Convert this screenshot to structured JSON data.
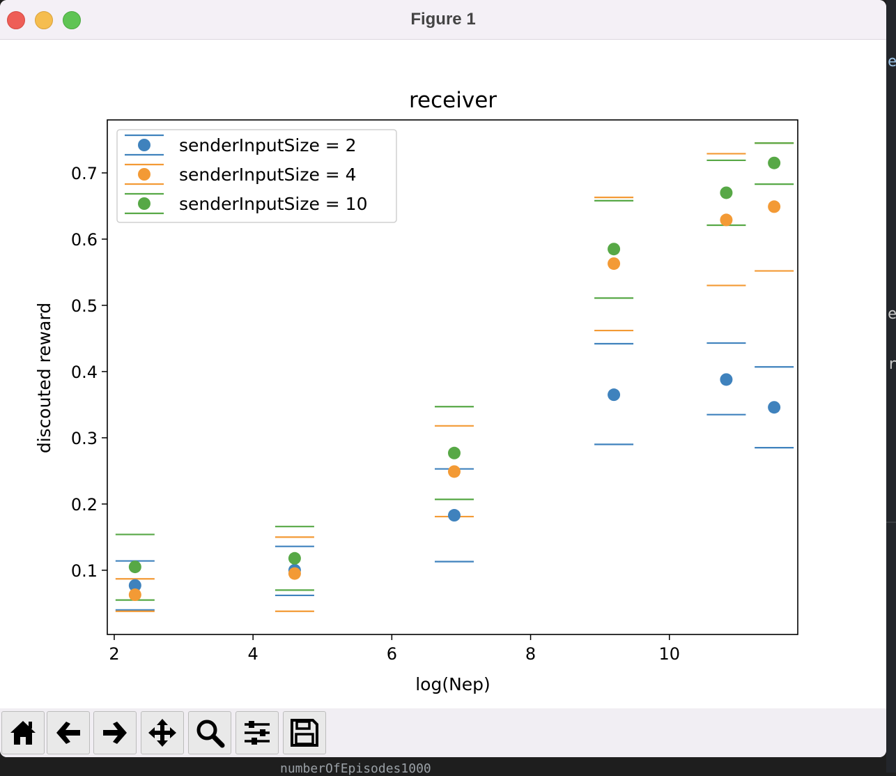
{
  "window": {
    "title": "Figure 1"
  },
  "toolbar": {
    "buttons": [
      {
        "name": "home-button",
        "icon": "home-icon"
      },
      {
        "name": "back-button",
        "icon": "arrow-left-icon"
      },
      {
        "name": "forward-button",
        "icon": "arrow-right-icon"
      },
      {
        "name": "pan-button",
        "icon": "move-icon"
      },
      {
        "name": "zoom-button",
        "icon": "magnifier-icon"
      },
      {
        "name": "configure-subplots-button",
        "icon": "sliders-icon"
      },
      {
        "name": "save-button",
        "icon": "floppy-disk-icon"
      }
    ]
  },
  "background": {
    "terminal_text": "numberOfEpisodes1000",
    "edge_letters": [
      "e",
      "e",
      "r"
    ]
  },
  "chart_data": {
    "type": "scatter",
    "title": "receiver",
    "xlabel": "log(Nep)",
    "ylabel": "discouted reward",
    "xlim": [
      1.9,
      11.85
    ],
    "ylim": [
      0.003,
      0.78
    ],
    "xticks": [
      2,
      4,
      6,
      8,
      10
    ],
    "yticks": [
      0.1,
      0.2,
      0.3,
      0.4,
      0.5,
      0.6,
      0.7
    ],
    "grid": false,
    "legend_position": "top-left",
    "x": [
      2.3,
      4.6,
      6.9,
      9.2,
      10.82,
      11.51
    ],
    "series": [
      {
        "name": "senderInputSize = 2",
        "color": "#3f82bd",
        "means": [
          0.077,
          0.1,
          0.183,
          0.365,
          0.388,
          0.346
        ],
        "band_high": [
          0.114,
          0.136,
          0.253,
          0.442,
          0.443,
          0.407
        ],
        "band_low": [
          0.04,
          0.062,
          0.113,
          0.29,
          0.335,
          0.285
        ]
      },
      {
        "name": "senderInputSize = 4",
        "color": "#f39a35",
        "means": [
          0.063,
          0.095,
          0.249,
          0.563,
          0.629,
          0.649
        ],
        "band_high": [
          0.087,
          0.15,
          0.318,
          0.663,
          0.729,
          0.552
        ],
        "band_low": [
          0.038,
          0.038,
          0.181,
          0.462,
          0.53,
          0.745
        ]
      },
      {
        "name": "senderInputSize = 10",
        "color": "#57a846",
        "means": [
          0.105,
          0.118,
          0.277,
          0.585,
          0.67,
          0.715
        ],
        "band_high": [
          0.154,
          0.166,
          0.347,
          0.658,
          0.719,
          0.745
        ],
        "band_low": [
          0.055,
          0.07,
          0.207,
          0.511,
          0.621,
          0.683
        ]
      }
    ]
  }
}
